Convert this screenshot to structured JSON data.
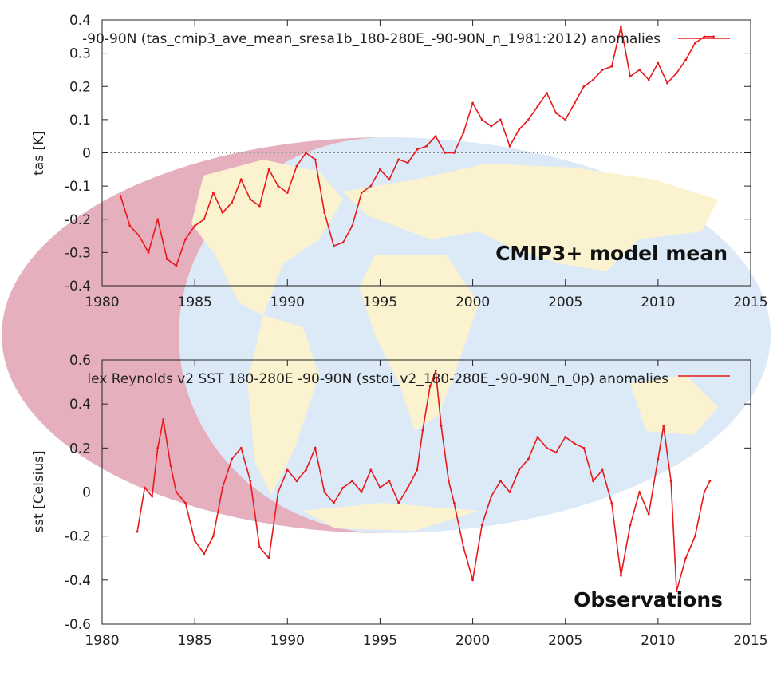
{
  "colors": {
    "series": "#e8191b",
    "ocean": "#dce9f7",
    "land": "#fbf3cf",
    "pink": "#e7a4b4",
    "axis": "#222222",
    "zero": "#888888"
  },
  "background_icon": "world-map-icon",
  "chart_data": [
    {
      "type": "line",
      "title": "CMIP3+ model mean",
      "legend": "-90-90N (tas_cmip3_ave_mean_sresa1b_180-280E_-90-90N_n_1981:2012) anomalies",
      "ylabel": "tas [K]",
      "xlabel": "",
      "xlim": [
        1980,
        2015
      ],
      "ylim": [
        -0.4,
        0.4
      ],
      "xticks": [
        "1980",
        "1985",
        "1990",
        "1995",
        "2000",
        "2005",
        "2010",
        "2015"
      ],
      "yticks": [
        "0.4",
        "0.3",
        "0.2",
        "0.1",
        "0",
        "-0.1",
        "-0.2",
        "-0.3",
        "-0.4"
      ],
      "legend_position": "top-right",
      "x": [
        1981.0,
        1981.5,
        1982.0,
        1982.5,
        1983.0,
        1983.5,
        1984.0,
        1984.5,
        1985.0,
        1985.5,
        1986.0,
        1986.5,
        1987.0,
        1987.5,
        1988.0,
        1988.5,
        1989.0,
        1989.5,
        1990.0,
        1990.5,
        1991.0,
        1991.5,
        1992.0,
        1992.5,
        1993.0,
        1993.5,
        1994.0,
        1994.5,
        1995.0,
        1995.5,
        1996.0,
        1996.5,
        1997.0,
        1997.5,
        1998.0,
        1998.5,
        1999.0,
        1999.5,
        2000.0,
        2000.5,
        2001.0,
        2001.5,
        2002.0,
        2002.5,
        2003.0,
        2003.5,
        2004.0,
        2004.5,
        2005.0,
        2005.5,
        2006.0,
        2006.5,
        2007.0,
        2007.5,
        2008.0,
        2008.5,
        2009.0,
        2009.5,
        2010.0,
        2010.5,
        2011.0,
        2011.5,
        2012.0,
        2012.5,
        2013.0
      ],
      "values": [
        -0.13,
        -0.22,
        -0.25,
        -0.3,
        -0.2,
        -0.32,
        -0.34,
        -0.26,
        -0.22,
        -0.2,
        -0.12,
        -0.18,
        -0.15,
        -0.08,
        -0.14,
        -0.16,
        -0.05,
        -0.1,
        -0.12,
        -0.04,
        0.0,
        -0.02,
        -0.18,
        -0.28,
        -0.27,
        -0.22,
        -0.12,
        -0.1,
        -0.05,
        -0.08,
        -0.02,
        -0.03,
        0.01,
        0.02,
        0.05,
        0.0,
        0.0,
        0.06,
        0.15,
        0.1,
        0.08,
        0.1,
        0.02,
        0.07,
        0.1,
        0.14,
        0.18,
        0.12,
        0.1,
        0.15,
        0.2,
        0.22,
        0.25,
        0.26,
        0.38,
        0.23,
        0.25,
        0.22,
        0.27,
        0.21,
        0.24,
        0.28,
        0.33,
        0.35,
        0.35
      ]
    },
    {
      "type": "line",
      "title": "Observations",
      "legend": "lex Reynolds v2 SST 180-280E -90-90N (sstoi_v2_180-280E_-90-90N_n_0p) anomalies",
      "ylabel": "sst [Celsius]",
      "xlabel": "",
      "xlim": [
        1980,
        2015
      ],
      "ylim": [
        -0.6,
        0.6
      ],
      "xticks": [
        "1980",
        "1985",
        "1990",
        "1995",
        "2000",
        "2005",
        "2010",
        "2015"
      ],
      "yticks": [
        "0.6",
        "0.4",
        "0.2",
        "0",
        "-0.2",
        "-0.4",
        "-0.6"
      ],
      "legend_position": "top-right",
      "x": [
        1981.9,
        1982.3,
        1982.7,
        1983.0,
        1983.3,
        1983.7,
        1984.0,
        1984.5,
        1985.0,
        1985.5,
        1986.0,
        1986.5,
        1987.0,
        1987.5,
        1988.0,
        1988.5,
        1989.0,
        1989.5,
        1990.0,
        1990.5,
        1991.0,
        1991.5,
        1992.0,
        1992.5,
        1993.0,
        1993.5,
        1994.0,
        1994.5,
        1995.0,
        1995.5,
        1996.0,
        1996.5,
        1997.0,
        1997.3,
        1997.7,
        1998.0,
        1998.3,
        1998.7,
        1999.0,
        1999.5,
        2000.0,
        2000.5,
        2001.0,
        2001.5,
        2002.0,
        2002.5,
        2003.0,
        2003.5,
        2004.0,
        2004.5,
        2005.0,
        2005.5,
        2006.0,
        2006.5,
        2007.0,
        2007.5,
        2008.0,
        2008.5,
        2009.0,
        2009.5,
        2010.0,
        2010.3,
        2010.7,
        2011.0,
        2011.5,
        2012.0,
        2012.5,
        2012.8
      ],
      "values": [
        -0.18,
        0.02,
        -0.02,
        0.2,
        0.33,
        0.12,
        0.0,
        -0.05,
        -0.22,
        -0.28,
        -0.2,
        0.02,
        0.15,
        0.2,
        0.05,
        -0.25,
        -0.3,
        0.0,
        0.1,
        0.05,
        0.1,
        0.2,
        0.0,
        -0.05,
        0.02,
        0.05,
        0.0,
        0.1,
        0.02,
        0.05,
        -0.05,
        0.02,
        0.1,
        0.28,
        0.48,
        0.55,
        0.3,
        0.05,
        -0.05,
        -0.25,
        -0.4,
        -0.15,
        -0.02,
        0.05,
        0.0,
        0.1,
        0.15,
        0.25,
        0.2,
        0.18,
        0.25,
        0.22,
        0.2,
        0.05,
        0.1,
        -0.05,
        -0.38,
        -0.15,
        0.0,
        -0.1,
        0.15,
        0.3,
        0.05,
        -0.45,
        -0.3,
        -0.2,
        0.0,
        0.05
      ]
    }
  ]
}
